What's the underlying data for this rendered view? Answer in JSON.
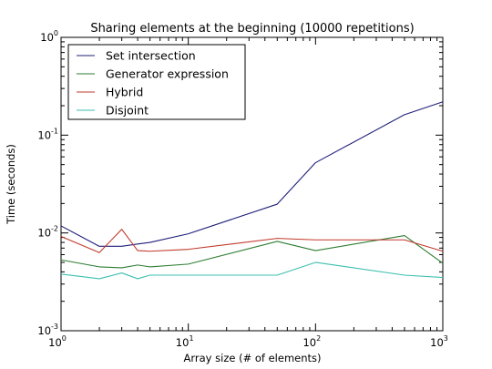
{
  "chart_data": {
    "type": "line",
    "title": "Sharing elements at the beginning (10000 repetitions)",
    "xlabel": "Array size (# of elements)",
    "ylabel": "Time (seconds)",
    "xscale": "log",
    "yscale": "log",
    "xlim": [
      1,
      1000
    ],
    "ylim": [
      0.001,
      1
    ],
    "grid": false,
    "legend_position": "top-left",
    "x_ticks": [
      {
        "value": 1,
        "base": "10",
        "exp": "0"
      },
      {
        "value": 10,
        "base": "10",
        "exp": "1"
      },
      {
        "value": 100,
        "base": "10",
        "exp": "2"
      },
      {
        "value": 1000,
        "base": "10",
        "exp": "3"
      }
    ],
    "y_ticks": [
      {
        "value": 0.001,
        "base": "10",
        "exp": "-3"
      },
      {
        "value": 0.01,
        "base": "10",
        "exp": "-2"
      },
      {
        "value": 0.1,
        "base": "10",
        "exp": "-1"
      },
      {
        "value": 1,
        "base": "10",
        "exp": "0"
      }
    ],
    "x": [
      1,
      2,
      3,
      4,
      5,
      10,
      50,
      100,
      500,
      1000
    ],
    "series": [
      {
        "name": "Set intersection",
        "color": "#1f1f7a",
        "values": [
          0.0118,
          0.0073,
          0.0073,
          0.0077,
          0.008,
          0.0098,
          0.0197,
          0.0523,
          0.162,
          0.219
        ]
      },
      {
        "name": "Generator expression",
        "color": "#2e7d32",
        "values": [
          0.0053,
          0.0045,
          0.0044,
          0.0047,
          0.0045,
          0.0048,
          0.0082,
          0.0066,
          0.0094,
          0.0049
        ]
      },
      {
        "name": "Hybrid",
        "color": "#c0392b",
        "values": [
          0.0092,
          0.0063,
          0.0109,
          0.0066,
          0.0065,
          0.0068,
          0.0088,
          0.0085,
          0.0085,
          0.0065
        ]
      },
      {
        "name": "Disjoint",
        "color": "#3cbfb0",
        "values": [
          0.0038,
          0.0034,
          0.0039,
          0.0034,
          0.0037,
          0.0037,
          0.0037,
          0.005,
          0.0037,
          0.0035
        ]
      }
    ]
  }
}
